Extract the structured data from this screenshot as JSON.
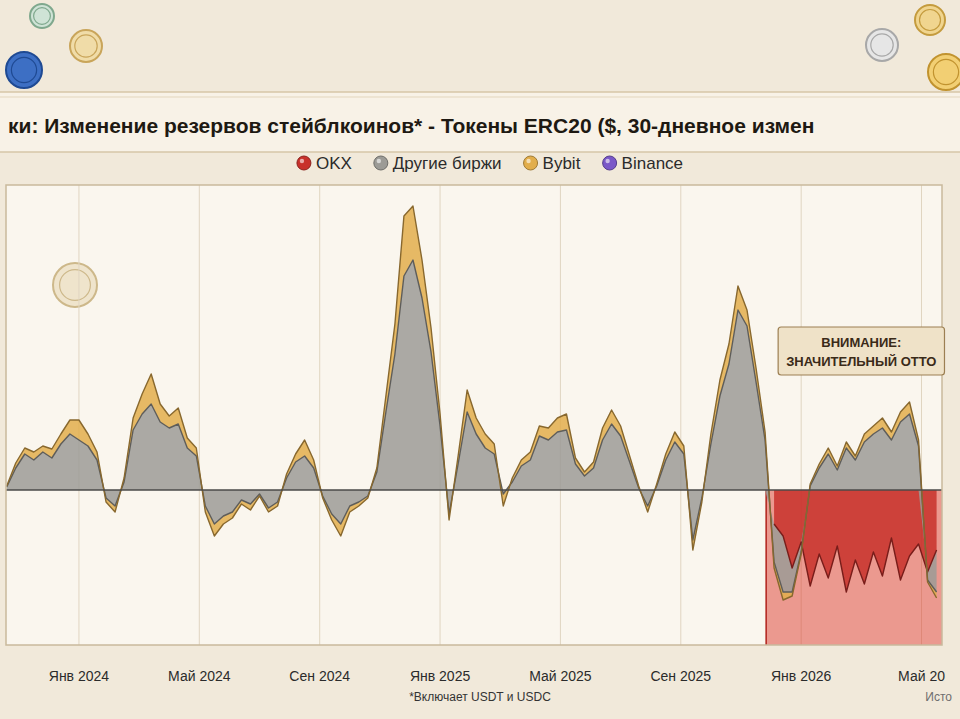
{
  "chart_data": {
    "type": "area",
    "title": "ки: Изменение резервов стейблкоинов* - Токены ERC20 ($, 30-дневное измен",
    "footnote": "*Включает USDT и USDC",
    "source": "Исто",
    "annotations": [
      {
        "lines": [
          "ВНИМАНИЕ:",
          "ЗНАЧИТЕЛЬНЫЙ ОТТО"
        ],
        "x": 2025.903
      }
    ],
    "x": [
      2023.8,
      2023.825,
      2023.85,
      2023.875,
      2023.9,
      2023.925,
      2023.95,
      2023.975,
      2024,
      2024.025,
      2024.05,
      2024.075,
      2024.1,
      2024.125,
      2024.15,
      2024.175,
      2024.2,
      2024.225,
      2024.25,
      2024.275,
      2024.3,
      2024.325,
      2024.35,
      2024.375,
      2024.4,
      2024.425,
      2024.45,
      2024.475,
      2024.5,
      2024.525,
      2024.55,
      2024.575,
      2024.6,
      2024.625,
      2024.65,
      2024.675,
      2024.7,
      2024.725,
      2024.75,
      2024.775,
      2024.8,
      2024.825,
      2024.85,
      2024.875,
      2024.9,
      2024.925,
      2024.95,
      2024.975,
      2025,
      2025.025,
      2025.05,
      2025.075,
      2025.1,
      2025.125,
      2025.15,
      2025.175,
      2025.2,
      2025.225,
      2025.25,
      2025.275,
      2025.3,
      2025.325,
      2025.35,
      2025.375,
      2025.4,
      2025.425,
      2025.45,
      2025.475,
      2025.5,
      2025.525,
      2025.55,
      2025.575,
      2025.6,
      2025.625,
      2025.65,
      2025.675,
      2025.7,
      2025.725,
      2025.75,
      2025.775,
      2025.8,
      2025.825,
      2025.85,
      2025.875,
      2025.9,
      2025.925,
      2025.95,
      2025.975,
      2026,
      2026.025,
      2026.05,
      2026.075,
      2026.1,
      2026.125,
      2026.15,
      2026.175,
      2026.2,
      2026.225,
      2026.25,
      2026.275,
      2026.3,
      2026.325,
      2026.35,
      2026.375
    ],
    "series": [
      {
        "name": "OKX",
        "color": "#c8312b",
        "values": [
          null,
          null,
          null,
          null,
          null,
          null,
          null,
          null,
          null,
          null,
          null,
          null,
          null,
          null,
          null,
          null,
          null,
          null,
          null,
          null,
          null,
          null,
          null,
          null,
          null,
          null,
          null,
          null,
          null,
          null,
          null,
          null,
          null,
          null,
          null,
          null,
          null,
          null,
          null,
          null,
          null,
          null,
          null,
          null,
          null,
          null,
          null,
          null,
          null,
          null,
          null,
          null,
          null,
          null,
          null,
          null,
          null,
          null,
          null,
          null,
          null,
          null,
          null,
          null,
          null,
          null,
          null,
          null,
          null,
          null,
          null,
          null,
          null,
          null,
          null,
          null,
          null,
          null,
          null,
          null,
          null,
          null,
          null,
          null,
          null,
          -3.4,
          -4.6,
          -7.8,
          -5.2,
          -9.6,
          -6.4,
          -8.8,
          -5.6,
          -10.2,
          -7.0,
          -9.4,
          -6.2,
          -8.6,
          -4.8,
          -9.0,
          -6.6,
          -5.4,
          -8.2,
          -6.0
        ]
      },
      {
        "name": "Другие биржи",
        "color": "#9c9b96",
        "values": [
          0.3,
          2.2,
          3.6,
          3.0,
          3.8,
          3.2,
          4.6,
          5.6,
          5.0,
          4.4,
          3.0,
          -0.8,
          -1.6,
          0.8,
          6.0,
          7.6,
          8.6,
          6.8,
          6.2,
          6.6,
          4.2,
          3.4,
          -1.6,
          -3.4,
          -2.6,
          -2.2,
          -1.0,
          -1.4,
          -0.4,
          -1.8,
          -1.2,
          1.2,
          2.8,
          3.4,
          2.2,
          -0.6,
          -2.4,
          -3.4,
          -1.6,
          -1.2,
          -0.6,
          1.8,
          7.8,
          13.6,
          21.4,
          23.0,
          19.2,
          13.8,
          6.4,
          -2.4,
          2.6,
          7.8,
          5.6,
          4.2,
          3.6,
          -0.4,
          0.8,
          2.4,
          3.0,
          5.4,
          5.0,
          5.8,
          6.0,
          2.6,
          1.4,
          2.2,
          5.0,
          6.6,
          5.4,
          2.8,
          0.2,
          -1.6,
          0.4,
          3.0,
          4.8,
          3.6,
          -5.0,
          -0.8,
          4.6,
          9.4,
          12.6,
          18.0,
          16.4,
          10.8,
          5.0,
          -3.8,
          -5.6,
          -2.4,
          -1.0,
          0.4,
          2.2,
          3.6,
          2.0,
          4.2,
          3.0,
          4.8,
          5.6,
          6.2,
          5.0,
          6.8,
          7.6,
          4.4,
          -0.8,
          -4.2
        ]
      },
      {
        "name": "Bybit",
        "color": "#e2ae4c",
        "values": [
          0.1,
          0.5,
          0.6,
          0.8,
          0.6,
          0.9,
          1.0,
          1.4,
          2.0,
          1.2,
          0.8,
          -0.4,
          -0.6,
          0.4,
          1.2,
          2.0,
          3.0,
          1.8,
          1.2,
          1.6,
          1.0,
          0.8,
          -0.6,
          -1.2,
          -0.8,
          -0.6,
          -0.4,
          -0.6,
          -0.2,
          -0.4,
          -0.4,
          0.4,
          0.8,
          1.6,
          0.8,
          -0.2,
          -0.6,
          -1.2,
          -0.6,
          -0.4,
          -0.2,
          0.4,
          1.6,
          3.0,
          6.0,
          5.4,
          3.8,
          2.4,
          1.2,
          -0.6,
          0.8,
          2.2,
          1.6,
          1.4,
          1.0,
          -1.2,
          0.4,
          0.6,
          0.8,
          1.0,
          1.2,
          1.4,
          1.6,
          0.6,
          0.4,
          0.6,
          1.2,
          1.4,
          1.0,
          0.6,
          0.2,
          -0.6,
          0.2,
          0.6,
          1.0,
          0.8,
          -1.0,
          -0.4,
          1.0,
          1.6,
          2.0,
          2.4,
          1.6,
          1.4,
          0.8,
          -0.6,
          -0.8,
          -0.4,
          -0.2,
          0.2,
          0.4,
          0.6,
          0.4,
          0.6,
          0.4,
          0.8,
          0.8,
          1.0,
          0.8,
          1.0,
          1.2,
          0.6,
          -0.2,
          -0.6
        ]
      },
      {
        "name": "Binance",
        "color": "#7a58c8",
        "values": [
          null,
          null,
          null,
          null,
          null,
          null,
          null,
          null,
          null,
          null,
          null,
          null,
          null,
          null,
          null,
          null,
          null,
          null,
          null,
          null,
          null,
          null,
          null,
          null,
          null,
          null,
          null,
          null,
          null,
          null,
          null,
          null,
          null,
          null,
          null,
          null,
          null,
          null,
          null,
          null,
          null,
          null,
          null,
          null,
          null,
          null,
          null,
          null,
          null,
          null,
          null,
          null,
          null,
          null,
          null,
          null,
          null,
          null,
          null,
          null,
          null,
          null,
          null,
          null,
          null,
          null,
          null,
          null,
          null,
          null,
          null,
          null,
          null,
          null,
          null,
          null,
          null,
          null,
          null,
          null,
          null,
          null,
          null,
          null,
          null,
          null,
          null,
          null,
          null,
          null,
          null,
          null,
          null,
          null,
          null,
          null,
          null,
          null,
          null,
          null,
          null,
          null,
          null,
          null
        ]
      }
    ],
    "xlim": [
      2023.798,
      2026.39
    ],
    "xticks": [
      {
        "value": 2024,
        "label": "Янв 2024"
      },
      {
        "value": 2024.3333,
        "label": "Май 2024"
      },
      {
        "value": 2024.6667,
        "label": "Сен 2024"
      },
      {
        "value": 2025,
        "label": "Янв 2025"
      },
      {
        "value": 2025.3333,
        "label": "Май 2025"
      },
      {
        "value": 2025.6667,
        "label": "Сен 2025"
      },
      {
        "value": 2026,
        "label": "Янв 2026"
      },
      {
        "value": 2026.3333,
        "label": "Май 20"
      }
    ],
    "ylim": [
      -15.5,
      30.5
    ],
    "yticks": [
      0
    ],
    "grid": true,
    "stacked": true,
    "tick_labels": "x",
    "legend": "top"
  }
}
